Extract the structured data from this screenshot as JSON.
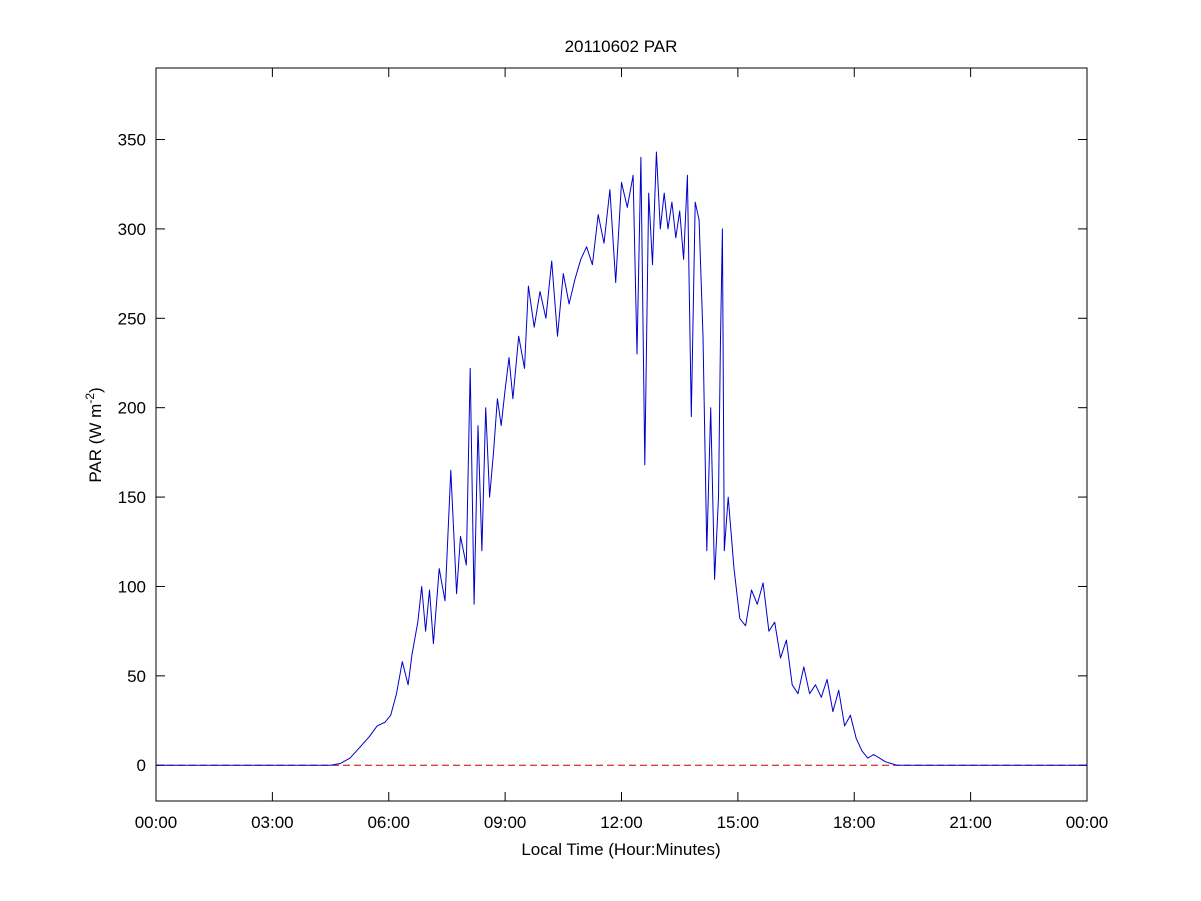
{
  "chart_data": {
    "type": "line",
    "title": "20110602 PAR",
    "xlabel": "Local Time (Hour:Minutes)",
    "ylabel_main": "PAR (W m",
    "ylabel_sup": "-2",
    "ylabel_close": ")",
    "xlim": [
      0,
      24
    ],
    "ylim": [
      -20,
      390
    ],
    "x_ticks": [
      0,
      3,
      6,
      9,
      12,
      15,
      18,
      21,
      24
    ],
    "x_tick_labels": [
      "00:00",
      "03:00",
      "06:00",
      "09:00",
      "12:00",
      "15:00",
      "18:00",
      "21:00",
      "00:00"
    ],
    "y_ticks": [
      0,
      50,
      100,
      150,
      200,
      250,
      300,
      350
    ],
    "y_tick_labels": [
      "0",
      "50",
      "100",
      "150",
      "200",
      "250",
      "300",
      "350"
    ],
    "grid": false,
    "reference_line": {
      "y": 0,
      "style": "dashed",
      "color": "#cc0000"
    },
    "series": [
      {
        "color": "#0000cc",
        "x": [
          0,
          4.5,
          4.75,
          5.0,
          5.25,
          5.5,
          5.7,
          5.9,
          6.05,
          6.2,
          6.35,
          6.5,
          6.6,
          6.75,
          6.85,
          6.95,
          7.05,
          7.15,
          7.3,
          7.45,
          7.6,
          7.75,
          7.85,
          8.0,
          8.1,
          8.2,
          8.3,
          8.4,
          8.5,
          8.6,
          8.7,
          8.8,
          8.9,
          9.0,
          9.1,
          9.2,
          9.35,
          9.5,
          9.6,
          9.75,
          9.9,
          10.05,
          10.2,
          10.35,
          10.5,
          10.65,
          10.8,
          10.95,
          11.1,
          11.25,
          11.4,
          11.55,
          11.7,
          11.85,
          12.0,
          12.15,
          12.3,
          12.4,
          12.5,
          12.6,
          12.7,
          12.8,
          12.9,
          13.0,
          13.1,
          13.2,
          13.3,
          13.4,
          13.5,
          13.6,
          13.7,
          13.8,
          13.9,
          14.0,
          14.1,
          14.2,
          14.3,
          14.4,
          14.5,
          14.55,
          14.6,
          14.65,
          14.75,
          14.9,
          15.05,
          15.2,
          15.35,
          15.5,
          15.65,
          15.8,
          15.95,
          16.1,
          16.25,
          16.4,
          16.55,
          16.7,
          16.85,
          17.0,
          17.15,
          17.3,
          17.45,
          17.6,
          17.75,
          17.9,
          18.05,
          18.2,
          18.35,
          18.5,
          18.65,
          18.8,
          18.95,
          19.1,
          24
        ],
        "y": [
          0,
          0,
          1,
          4,
          10,
          16,
          22,
          24,
          28,
          40,
          58,
          45,
          62,
          80,
          100,
          75,
          98,
          68,
          110,
          92,
          165,
          96,
          128,
          112,
          222,
          90,
          190,
          120,
          200,
          150,
          175,
          205,
          190,
          210,
          228,
          205,
          240,
          222,
          268,
          245,
          265,
          250,
          282,
          240,
          275,
          258,
          272,
          283,
          290,
          280,
          308,
          292,
          322,
          270,
          326,
          312,
          330,
          230,
          340,
          168,
          320,
          280,
          343,
          300,
          320,
          300,
          315,
          295,
          310,
          283,
          330,
          195,
          315,
          305,
          240,
          120,
          200,
          104,
          150,
          235,
          300,
          120,
          150,
          110,
          82,
          78,
          98,
          90,
          102,
          75,
          80,
          60,
          70,
          45,
          40,
          55,
          40,
          45,
          38,
          48,
          30,
          42,
          22,
          28,
          15,
          8,
          4,
          6,
          4,
          2,
          1,
          0,
          0
        ]
      }
    ]
  }
}
